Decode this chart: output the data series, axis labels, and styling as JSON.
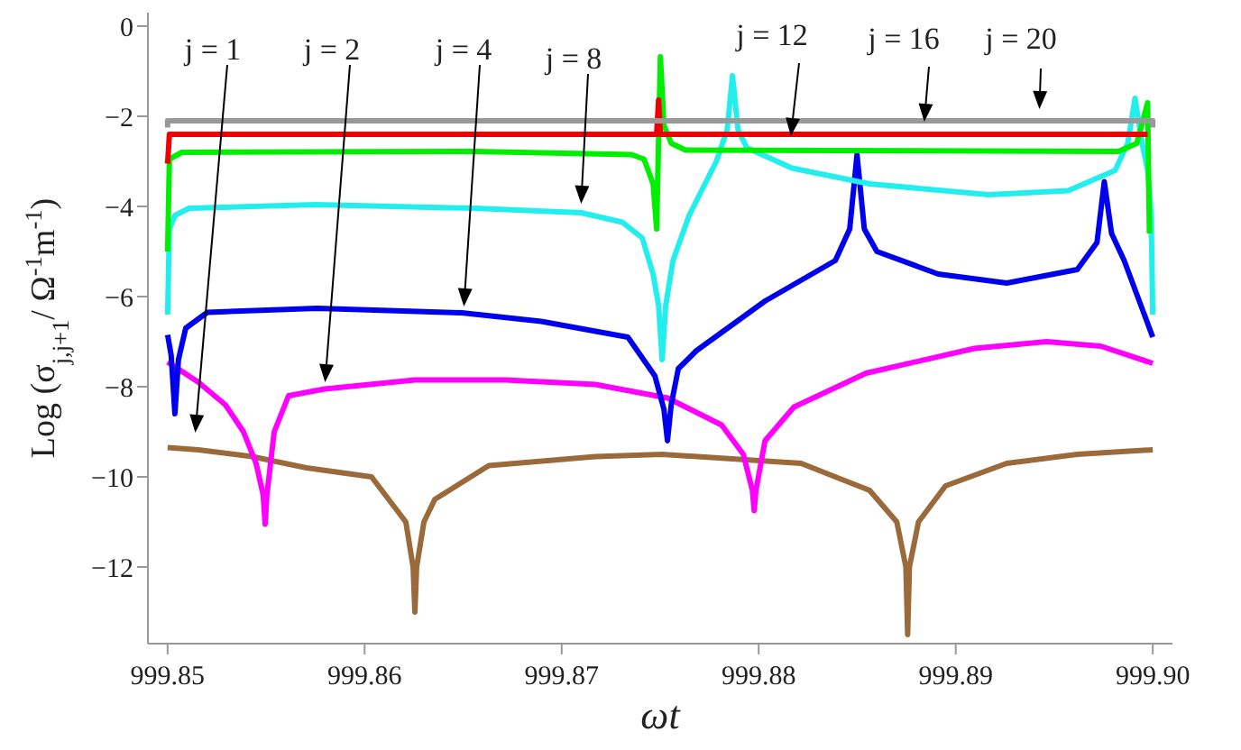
{
  "chart_data": {
    "type": "line",
    "xlabel": "ωt",
    "ylabel": "Log (σ$_{j,j+1}$/ Ω$^{-1}$m$^{-1}$)",
    "xlim": [
      999.849,
      999.901
    ],
    "ylim": [
      -13.7,
      0.3
    ],
    "xticks": [
      999.85,
      999.86,
      999.87,
      999.88,
      999.89,
      {
        "value": 999.9,
        "label": "999.90"
      }
    ],
    "yticks": [
      -12,
      -10,
      -8,
      -6,
      -4,
      -2,
      0
    ],
    "grid": false,
    "legend": false,
    "marker": "none",
    "line_style": "solid",
    "series": [
      {
        "color": "#9b6a3a",
        "x": [
          999.85,
          999.85156,
          999.8543,
          999.85705,
          999.86035,
          999.86209,
          999.86246,
          999.86255,
          999.86264,
          999.86301,
          999.86356,
          999.8663,
          999.87171,
          999.8751,
          999.88215,
          999.88563,
          999.88701,
          999.88747,
          999.88756,
          999.88765,
          999.88811,
          999.88948,
          999.89259,
          999.89617,
          999.9
        ],
        "values": [
          -9.35,
          -9.4,
          -9.55,
          -9.8,
          -10.0,
          -11.0,
          -12.0,
          -13.0,
          -12.0,
          -11.0,
          -10.5,
          -9.75,
          -9.55,
          -9.5,
          -9.7,
          -10.3,
          -11.0,
          -12.0,
          -13.5,
          -12.0,
          -11.0,
          -10.2,
          -9.7,
          -9.5,
          -9.4
        ]
      },
      {
        "color": "#ff00ff",
        "x": [
          999.85,
          999.85156,
          999.85293,
          999.85385,
          999.85449,
          999.85485,
          999.85495,
          999.85504,
          999.85541,
          999.85614,
          999.85797,
          999.86255,
          999.86713,
          999.87171,
          999.87537,
          999.87812,
          999.87922,
          999.87968,
          999.87977,
          999.87986,
          999.88032,
          999.88179,
          999.88545,
          999.89095,
          999.89461,
          999.89736,
          999.9
        ],
        "values": [
          -7.45,
          -7.9,
          -8.4,
          -9.0,
          -9.7,
          -10.4,
          -11.05,
          -10.4,
          -9.0,
          -8.2,
          -8.05,
          -7.85,
          -7.85,
          -7.95,
          -8.25,
          -8.85,
          -9.5,
          -10.3,
          -10.75,
          -10.3,
          -9.2,
          -8.45,
          -7.7,
          -7.15,
          -7.0,
          -7.1,
          -7.48
        ]
      },
      {
        "color": "#0000ee",
        "x": [
          999.85,
          999.85018,
          999.85037,
          999.85055,
          999.85092,
          999.85202,
          999.8576,
          999.86493,
          999.86896,
          999.87336,
          999.87473,
          999.87519,
          999.87537,
          999.87556,
          999.87592,
          999.87684,
          999.88032,
          999.88389,
          999.88462,
          999.88499,
          999.88536,
          999.886,
          999.88911,
          999.89259,
          999.89617,
          999.89717,
          999.89754,
          999.89791,
          999.89855,
          999.9
        ],
        "values": [
          -6.85,
          -7.3,
          -8.6,
          -7.4,
          -6.7,
          -6.35,
          -6.26,
          -6.36,
          -6.55,
          -6.9,
          -7.76,
          -8.5,
          -9.2,
          -8.4,
          -7.6,
          -7.2,
          -6.1,
          -5.2,
          -4.5,
          -2.85,
          -4.5,
          -5.0,
          -5.5,
          -5.7,
          -5.4,
          -4.8,
          -3.45,
          -4.6,
          -5.2,
          -6.9
        ]
      },
      {
        "color": "#22eeee",
        "x": [
          999.85,
          999.85009,
          999.85037,
          999.8511,
          999.85751,
          999.86557,
          999.87098,
          999.87308,
          999.87409,
          999.87464,
          999.87492,
          999.8751,
          999.87528,
          999.87565,
          999.87647,
          999.87785,
          999.8784,
          999.87867,
          999.87895,
          999.8794,
          999.88169,
          999.88563,
          999.89168,
          999.89571,
          999.89809,
          999.89873,
          999.8991,
          999.89946,
          999.89974,
          999.89992,
          999.9
        ],
        "values": [
          -6.4,
          -4.5,
          -4.2,
          -4.04,
          -3.96,
          -4.04,
          -4.14,
          -4.35,
          -4.7,
          -5.5,
          -6.2,
          -7.4,
          -6.2,
          -5.2,
          -4.2,
          -3.0,
          -2.3,
          -1.1,
          -2.3,
          -2.7,
          -3.15,
          -3.5,
          -3.74,
          -3.65,
          -3.2,
          -2.6,
          -1.6,
          -2.6,
          -3.2,
          -4.2,
          -6.4
        ]
      },
      {
        "color": "#00ee00",
        "x": [
          999.85,
          999.85009,
          999.85073,
          999.86557,
          999.87354,
          999.87418,
          999.87464,
          999.87482,
          999.87501,
          999.87519,
          999.87556,
          999.87629,
          999.89827,
          999.89919,
          999.89956,
          999.89974,
          999.89983
        ],
        "values": [
          -5.0,
          -2.95,
          -2.8,
          -2.78,
          -2.85,
          -2.95,
          -3.5,
          -4.5,
          -0.68,
          -2.2,
          -2.6,
          -2.75,
          -2.78,
          -2.6,
          -2.0,
          -1.7,
          -4.6
        ]
      },
      {
        "color": "#ee0000",
        "x": [
          999.85,
          999.85009,
          999.87482,
          999.87492,
          999.87501,
          999.89974
        ],
        "values": [
          -3.05,
          -2.4,
          -2.4,
          -1.64,
          -2.4,
          -2.4
        ]
      },
      {
        "color": "#999999",
        "x": [
          999.85,
          999.85,
          999.9,
          999.9
        ],
        "values": [
          -2.25,
          -2.1,
          -2.1,
          -2.25
        ]
      }
    ],
    "annotations": [
      "j = 1",
      "j = 2",
      "j = 4",
      "j = 8",
      {
        "text": "j = 12",
        "x": 999.8816,
        "y": -2.56
      },
      {
        "text": "j = 16",
        "x": 999.88838,
        "y": -2.24
      },
      {
        "text": "j = 20",
        "x": 999.89424,
        "y": -1.96
      }
    ]
  }
}
